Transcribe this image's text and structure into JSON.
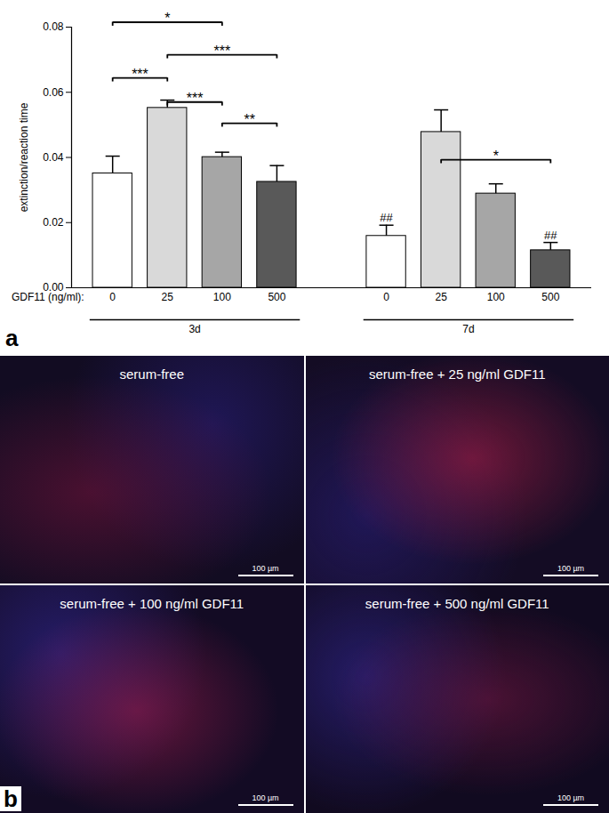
{
  "chart_data": {
    "type": "bar",
    "panel_label": "a",
    "y_label": "extinction/reaction time",
    "x_label": "GDF11 (ng/ml):",
    "categories": [
      "0",
      "25",
      "100",
      "500",
      "0",
      "25",
      "100",
      "500"
    ],
    "groups": [
      "3d",
      "3d",
      "3d",
      "3d",
      "7d",
      "7d",
      "7d",
      "7d"
    ],
    "values": [
      0.0351,
      0.0552,
      0.0401,
      0.0325,
      0.0159,
      0.0478,
      0.0289,
      0.0115
    ],
    "errors": [
      0.0053,
      0.0024,
      0.0015,
      0.005,
      0.0033,
      0.0068,
      0.003,
      0.0024
    ],
    "colors": [
      "#ffffff",
      "#d9d9d9",
      "#a6a6a6",
      "#595959",
      "#ffffff",
      "#d9d9d9",
      "#a6a6a6",
      "#595959"
    ],
    "ylim": [
      0,
      0.08
    ],
    "yticks": [
      {
        "value": 0,
        "label": "0.00"
      },
      {
        "value": 0.02,
        "label": "0.02"
      },
      {
        "value": 0.04,
        "label": "0.04"
      },
      {
        "value": 0.06,
        "label": "0.06"
      },
      {
        "value": 0.08,
        "label": "0.08"
      }
    ],
    "significance": [
      {
        "from": 0,
        "to": 2,
        "label": "*",
        "y": 0.0815
      },
      {
        "from": 1,
        "to": 3,
        "label": "***",
        "y": 0.0715
      },
      {
        "from": 0,
        "to": 1,
        "label": "***",
        "y": 0.0644
      },
      {
        "from": 1,
        "to": 2,
        "label": "***",
        "y": 0.057
      },
      {
        "from": 2,
        "to": 3,
        "label": "**",
        "y": 0.0505
      },
      {
        "from": 5,
        "to": 7,
        "label": "*",
        "y": 0.0393
      }
    ],
    "markers": [
      {
        "index": 4,
        "label": "##"
      },
      {
        "index": 7,
        "label": "##"
      }
    ]
  },
  "image_panel": {
    "panel_label": "b",
    "images": [
      {
        "caption": "serum-free",
        "scale_bar": "100 µm"
      },
      {
        "caption": "serum-free + 25 ng/ml GDF11",
        "scale_bar": "100 µm"
      },
      {
        "caption": "serum-free + 100 ng/ml GDF11",
        "scale_bar": "100 µm"
      },
      {
        "caption": "serum-free + 500 ng/ml GDF11",
        "scale_bar": "100 µm"
      }
    ]
  }
}
